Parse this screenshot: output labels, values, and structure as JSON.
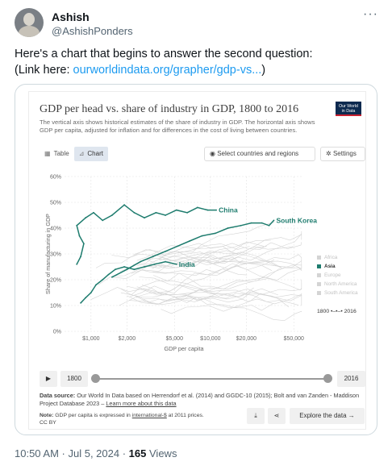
{
  "tweet": {
    "author_name": "Ashish",
    "handle": "@AshishPonders",
    "text_line1": "Here's a chart that begins to answer the second question:",
    "text_prefix": "(Link here: ",
    "link_text": "ourworldindata.org/grapher/gdp-vs...",
    "text_suffix": ")",
    "time": "10:50 AM",
    "date": "Jul 5, 2024",
    "views_count": "165",
    "views_label": "Views"
  },
  "owid": {
    "title": "GDP per head vs. share of industry in GDP, 1800 to 2016",
    "subtitle": "The vertical axis shows historical estimates of the share of industry in GDP. The horizontal axis shows GDP per capita, adjusted for inflation and for differences in the cost of living between countries.",
    "logo_line1": "Our World",
    "logo_line2": "in Data",
    "tab_table": "Table",
    "tab_chart": "Chart",
    "select_label": "Select countries and regions",
    "settings_label": "Settings",
    "legend": [
      "Africa",
      "Asia",
      "Europe",
      "North America",
      "South America"
    ],
    "legend_active": "Asia",
    "year_start": "1800",
    "year_end": "2016",
    "source_bold": "Data source:",
    "source_text": " Our World In Data based on Herrendorf et al. (2014) and GGDC-10 (2015); Bolt and van Zanden - Maddison Project Database 2023 – ",
    "source_link": "Learn more about this data",
    "note_bold": "Note:",
    "note_text1": " GDP per capita is expressed in ",
    "note_link": "international-$",
    "note_text2": " at 2011 prices.",
    "license": "CC BY",
    "explore_label": "Explore the data",
    "colors": {
      "highlight": "#1e7c6e",
      "muted": "#d4d4d4"
    }
  },
  "chart_data": {
    "type": "scatter",
    "title": "GDP per head vs. share of industry in GDP, 1800 to 2016",
    "xlabel": "GDP per capita",
    "ylabel": "Share of manufacturing in GDP",
    "x_ticks": [
      "$1,000",
      "$2,000",
      "$5,000",
      "$10,000",
      "$20,000",
      "$50,000"
    ],
    "y_ticks": [
      "0%",
      "10%",
      "20%",
      "30%",
      "40%",
      "50%",
      "60%"
    ],
    "x_tick_values": [
      1000,
      2000,
      5000,
      10000,
      20000,
      50000
    ],
    "y_tick_values": [
      0,
      10,
      20,
      30,
      40,
      50,
      60
    ],
    "xlim": [
      600,
      60000
    ],
    "ylim": [
      0,
      60
    ],
    "x_scale": "log",
    "series": [
      {
        "name": "China",
        "x": [
          760,
          820,
          870,
          800,
          760,
          900,
          1050,
          1250,
          1500,
          1900,
          2300,
          2800,
          3500,
          4200,
          5200,
          6400,
          7800,
          9500,
          11200
        ],
        "y": [
          26,
          29,
          34,
          37,
          41,
          44,
          46,
          43,
          45,
          49,
          46,
          44,
          46,
          45,
          47,
          46,
          48,
          47,
          47
        ]
      },
      {
        "name": "South Korea",
        "x": [
          1500,
          2000,
          2600,
          3300,
          4200,
          5300,
          6700,
          8500,
          11000,
          14000,
          18000,
          22000,
          27000,
          31000,
          34000
        ],
        "y": [
          21,
          24,
          27,
          29,
          31,
          33,
          35,
          37,
          38,
          40,
          41,
          42,
          42,
          41,
          43
        ]
      },
      {
        "name": "India",
        "x": [
          820,
          900,
          1000,
          1100,
          1250,
          1400,
          1600,
          1900,
          2300,
          2800,
          3400,
          4200,
          5200
        ],
        "y": [
          11,
          13,
          15,
          18,
          20,
          22,
          24,
          25,
          24,
          25,
          26,
          27,
          26
        ]
      }
    ],
    "annotations": [
      "China",
      "South Korea",
      "India"
    ],
    "legend": [
      "Africa",
      "Asia",
      "Europe",
      "North America",
      "South America"
    ],
    "year_range": [
      "1800",
      "2016"
    ],
    "grid": true,
    "legend_placement": "right"
  }
}
